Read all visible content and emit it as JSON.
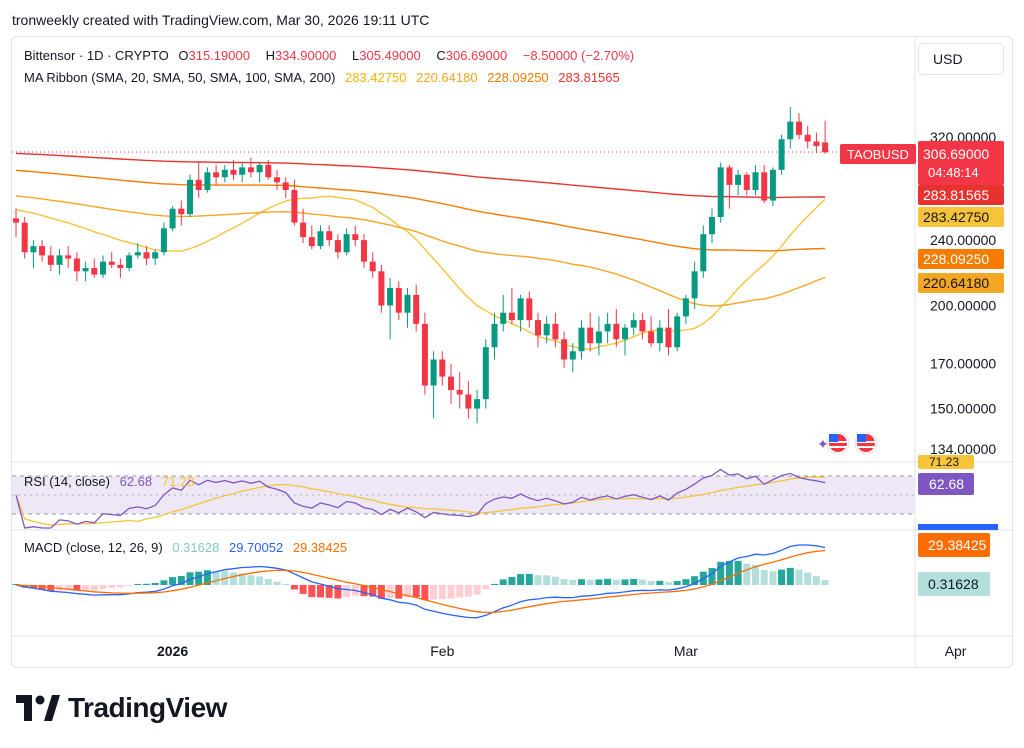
{
  "header": {
    "attribution": "tronweekly created with TradingView.com, Mar 30, 2026 19:11 UTC"
  },
  "currency_button": "USD",
  "symbol": {
    "name": "Bittensor · 1D · CRYPTO",
    "open_label": "O",
    "open": "315.19000",
    "high_label": "H",
    "high": "334.90000",
    "low_label": "L",
    "low": "305.49000",
    "close_label": "C",
    "close": "306.69000",
    "change": "−8.50000 (−2.70%)"
  },
  "ma_ribbon": {
    "label": "MA Ribbon (SMA, 20, SMA, 50, SMA, 100, SMA, 200)",
    "values": [
      "283.42750",
      "220.64180",
      "228.09250",
      "283.81565"
    ]
  },
  "badges": {
    "ticker": "TAOBUSD",
    "price": "306.69000",
    "countdown": "04:48:14",
    "ma200": "283.81565",
    "ma20": "283.42750",
    "ma100": "228.09250",
    "ma50": "220.64180",
    "rsi_ma": "71.23",
    "rsi": "62.68",
    "macd_signal": "29.38425",
    "macd_hist": "0.31628"
  },
  "rsi_panel": {
    "label": "RSI (14, close)",
    "value": "62.68",
    "ma_value": "71.23"
  },
  "macd_panel": {
    "label": "MACD (close, 12, 26, 9)",
    "hist": "0.31628",
    "macd": "29.70052",
    "signal": "29.38425"
  },
  "brand": "TradingView",
  "colors": {
    "up": "#089981",
    "down": "#f23645",
    "ma20": "#f7c33a",
    "ma50": "#f5a623",
    "ma100": "#f57c00",
    "ma200": "#e8322f",
    "rsi": "#7e57c2",
    "rsi_band": "#ede7f6",
    "macd": "#2962ff",
    "signal": "#ff6d00",
    "hist_up_strong": "#26a69a",
    "hist_up_weak": "#b2dfdb",
    "hist_down_strong": "#ff5252",
    "hist_down_weak": "#ffcdd2"
  },
  "chart_data": {
    "type": "candlestick",
    "title": "Bittensor · 1D · CRYPTO",
    "y_axis_ticks": [
      320,
      240,
      200,
      170,
      150,
      134
    ],
    "y_scale": "log",
    "x_axis_labels": [
      "2026",
      "Feb",
      "Mar",
      "Apr"
    ],
    "dates_start": "2025-12-14",
    "candles": [
      [
        255,
        262,
        242,
        252
      ],
      [
        252,
        256,
        228,
        232
      ],
      [
        232,
        240,
        222,
        236
      ],
      [
        236,
        240,
        226,
        230
      ],
      [
        230,
        236,
        220,
        224
      ],
      [
        224,
        234,
        218,
        230
      ],
      [
        230,
        236,
        222,
        228
      ],
      [
        228,
        232,
        214,
        220
      ],
      [
        220,
        226,
        214,
        222
      ],
      [
        222,
        228,
        216,
        218
      ],
      [
        218,
        230,
        216,
        226
      ],
      [
        226,
        232,
        222,
        224
      ],
      [
        224,
        228,
        216,
        222
      ],
      [
        222,
        232,
        220,
        230
      ],
      [
        230,
        238,
        228,
        232
      ],
      [
        232,
        236,
        224,
        228
      ],
      [
        228,
        234,
        224,
        232
      ],
      [
        232,
        252,
        230,
        248
      ],
      [
        248,
        264,
        246,
        262
      ],
      [
        262,
        268,
        250,
        258
      ],
      [
        258,
        288,
        256,
        284
      ],
      [
        284,
        298,
        270,
        276
      ],
      [
        276,
        294,
        274,
        290
      ],
      [
        290,
        296,
        280,
        286
      ],
      [
        286,
        296,
        282,
        292
      ],
      [
        292,
        300,
        284,
        288
      ],
      [
        288,
        298,
        282,
        294
      ],
      [
        294,
        302,
        286,
        290
      ],
      [
        290,
        298,
        282,
        296
      ],
      [
        296,
        300,
        284,
        286
      ],
      [
        286,
        292,
        276,
        282
      ],
      [
        282,
        286,
        270,
        276
      ],
      [
        276,
        284,
        250,
        252
      ],
      [
        252,
        262,
        238,
        242
      ],
      [
        242,
        250,
        234,
        236
      ],
      [
        236,
        250,
        234,
        246
      ],
      [
        246,
        250,
        236,
        240
      ],
      [
        240,
        244,
        228,
        232
      ],
      [
        232,
        248,
        230,
        244
      ],
      [
        244,
        250,
        236,
        240
      ],
      [
        240,
        244,
        222,
        226
      ],
      [
        226,
        232,
        216,
        220
      ],
      [
        220,
        224,
        196,
        200
      ],
      [
        200,
        216,
        182,
        210
      ],
      [
        210,
        214,
        192,
        196
      ],
      [
        196,
        210,
        188,
        206
      ],
      [
        206,
        212,
        186,
        190
      ],
      [
        190,
        196,
        156,
        160
      ],
      [
        160,
        176,
        146,
        172
      ],
      [
        172,
        176,
        160,
        164
      ],
      [
        164,
        170,
        152,
        158
      ],
      [
        158,
        166,
        150,
        156
      ],
      [
        156,
        162,
        146,
        150
      ],
      [
        150,
        158,
        144,
        154
      ],
      [
        154,
        182,
        150,
        178
      ],
      [
        178,
        196,
        172,
        190
      ],
      [
        190,
        206,
        186,
        196
      ],
      [
        196,
        210,
        190,
        192
      ],
      [
        192,
        206,
        186,
        204
      ],
      [
        204,
        208,
        188,
        192
      ],
      [
        192,
        196,
        178,
        184
      ],
      [
        184,
        194,
        180,
        190
      ],
      [
        190,
        196,
        178,
        182
      ],
      [
        182,
        186,
        168,
        172
      ],
      [
        172,
        180,
        166,
        176
      ],
      [
        176,
        192,
        172,
        188
      ],
      [
        188,
        196,
        176,
        180
      ],
      [
        180,
        194,
        174,
        186
      ],
      [
        186,
        196,
        180,
        190
      ],
      [
        190,
        198,
        178,
        182
      ],
      [
        182,
        190,
        174,
        188
      ],
      [
        188,
        196,
        184,
        192
      ],
      [
        192,
        196,
        182,
        186
      ],
      [
        186,
        194,
        178,
        180
      ],
      [
        180,
        192,
        176,
        188
      ],
      [
        188,
        198,
        174,
        178
      ],
      [
        178,
        196,
        176,
        194
      ],
      [
        194,
        206,
        190,
        204
      ],
      [
        204,
        226,
        198,
        220
      ],
      [
        220,
        250,
        216,
        244
      ],
      [
        244,
        262,
        238,
        256
      ],
      [
        256,
        298,
        252,
        294
      ],
      [
        294,
        296,
        262,
        280
      ],
      [
        280,
        292,
        272,
        288
      ],
      [
        288,
        290,
        272,
        276
      ],
      [
        276,
        296,
        272,
        290
      ],
      [
        290,
        296,
        266,
        268
      ],
      [
        268,
        294,
        264,
        292
      ],
      [
        292,
        322,
        288,
        318
      ],
      [
        318,
        348,
        310,
        334
      ],
      [
        334,
        342,
        318,
        322
      ],
      [
        322,
        330,
        310,
        316
      ],
      [
        316,
        324,
        306,
        312
      ],
      [
        315.19,
        334.9,
        305.49,
        306.69
      ]
    ]
  }
}
